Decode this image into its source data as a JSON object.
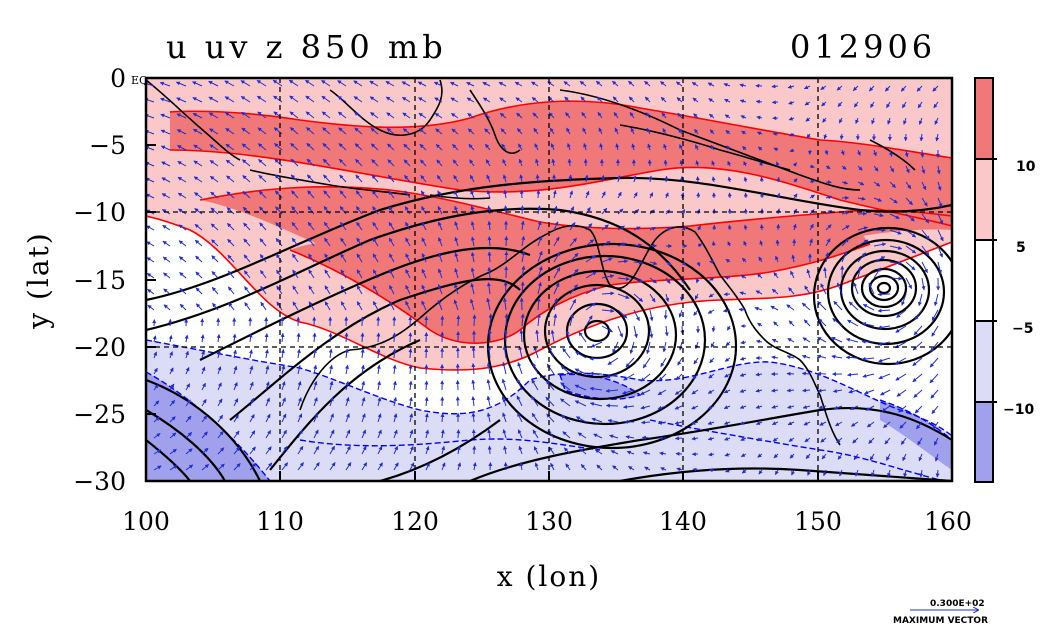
{
  "title_left": "u uv z 850 mb",
  "title_right": "012906",
  "xlabel": "x (lon)",
  "ylabel": "y (lat)",
  "corner_label": "EQ",
  "x_ticks": [
    "100",
    "110",
    "120",
    "130",
    "140",
    "150",
    "160"
  ],
  "y_ticks": [
    "0",
    "−5",
    "−10",
    "−15",
    "−20",
    "−25",
    "−30"
  ],
  "x_range": [
    100,
    160
  ],
  "y_range": [
    -30,
    0
  ],
  "colorbar": {
    "labels": [
      "10",
      "5",
      "−5",
      "−10"
    ],
    "colors": {
      "strong_pos": "#f07878",
      "pos": "#fac8c8",
      "neutral": "#ffffff",
      "neg": "#dcdcf6",
      "strong_neg": "#a0a0ec"
    }
  },
  "vector_legend": {
    "value": "0.300E+02",
    "label": "MAXIMUM VECTOR"
  },
  "chart_data": {
    "type": "heatmap",
    "title": "u uv z 850 mb",
    "subtitle": "012906",
    "xlabel": "x (lon)",
    "ylabel": "y (lat)",
    "xlim": [
      100,
      160
    ],
    "ylim": [
      -30,
      0
    ],
    "grid": true,
    "contour_levels": [
      -10,
      -5,
      5,
      10
    ],
    "colors": {
      "u_ge_10": "#f07878",
      "u_5_10": "#fac8c8",
      "u_-5_5": "#ffffff",
      "u_-10_-5": "#dcdcf6",
      "u_le_-10": "#a0a0ec",
      "positive_contour": "#ff0000",
      "negative_contour": "#0000ff",
      "geopotential_contour": "#000000",
      "vectors": "#1e2ed2"
    },
    "lows": [
      {
        "lon": 133.5,
        "lat": -19.0
      },
      {
        "lon": 155.5,
        "lat": -15.8
      }
    ]
  }
}
